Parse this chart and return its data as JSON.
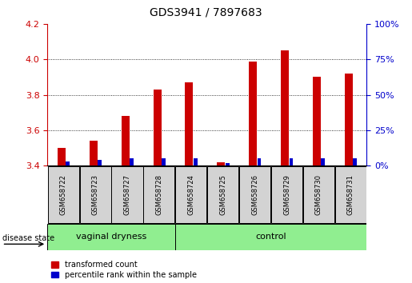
{
  "title": "GDS3941 / 7897683",
  "samples": [
    "GSM658722",
    "GSM658723",
    "GSM658727",
    "GSM658728",
    "GSM658724",
    "GSM658725",
    "GSM658726",
    "GSM658729",
    "GSM658730",
    "GSM658731"
  ],
  "transformed_count": [
    3.5,
    3.54,
    3.68,
    3.83,
    3.87,
    3.42,
    3.99,
    4.05,
    3.9,
    3.92
  ],
  "percentile_rank": [
    3,
    4,
    5,
    5,
    5,
    2,
    5,
    5,
    5,
    5
  ],
  "groups": [
    {
      "label": "vaginal dryness",
      "start": 0,
      "end": 4
    },
    {
      "label": "control",
      "start": 4,
      "end": 10
    }
  ],
  "ylim_left": [
    3.4,
    4.2
  ],
  "ylim_right": [
    0,
    100
  ],
  "yticks_left": [
    3.4,
    3.6,
    3.8,
    4.0,
    4.2
  ],
  "yticks_right": [
    0,
    25,
    50,
    75,
    100
  ],
  "red_color": "#cc0000",
  "blue_color": "#0000cc",
  "group_bg_color": "#90EE90",
  "sample_box_color": "#d3d3d3",
  "ylabel_left_color": "#cc0000",
  "ylabel_right_color": "#0000cc",
  "title_fontsize": 10,
  "disease_state_label": "disease state",
  "legend_red": "transformed count",
  "legend_blue": "percentile rank within the sample",
  "dotted_lines": [
    3.6,
    3.8,
    4.0
  ]
}
